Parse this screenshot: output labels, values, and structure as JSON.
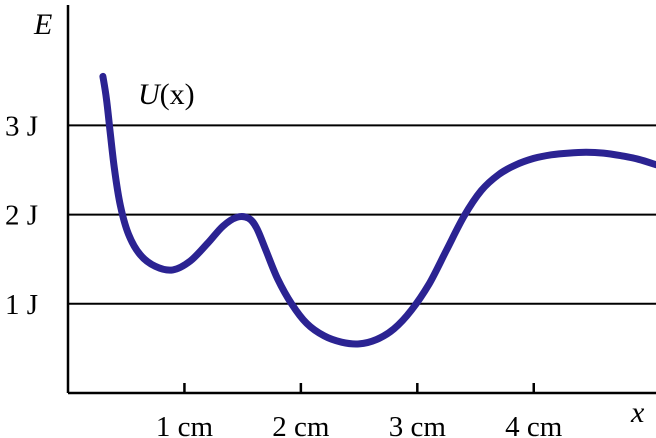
{
  "chart_data": {
    "type": "line",
    "xlabel": "x",
    "ylabel": "E",
    "curve_label_var": "U",
    "curve_label_arg": "(x)",
    "x_unit": "cm",
    "y_unit": "J",
    "xlim": [
      0,
      5.05
    ],
    "ylim": [
      0,
      4.35
    ],
    "y_ticks": [
      {
        "value": 1,
        "label": "1 J"
      },
      {
        "value": 2,
        "label": "2 J"
      },
      {
        "value": 3,
        "label": "3 J"
      }
    ],
    "x_ticks": [
      {
        "value": 1,
        "label": "1 cm"
      },
      {
        "value": 2,
        "label": "2 cm"
      },
      {
        "value": 3,
        "label": "3 cm"
      },
      {
        "value": 4,
        "label": "4 cm"
      }
    ],
    "gridlines_y": [
      1,
      2,
      3
    ],
    "series": [
      {
        "color": "#2b2392",
        "x": [
          0.3,
          0.33,
          0.36,
          0.4,
          0.45,
          0.52,
          0.62,
          0.75,
          0.9,
          1.05,
          1.2,
          1.33,
          1.45,
          1.55,
          1.62,
          1.7,
          1.8,
          1.92,
          2.05,
          2.2,
          2.35,
          2.5,
          2.65,
          2.8,
          2.95,
          3.1,
          3.25,
          3.4,
          3.55,
          3.7,
          3.85,
          4.0,
          4.15,
          4.3,
          4.45,
          4.6,
          4.75,
          4.9,
          5.05
        ],
        "y": [
          3.55,
          3.3,
          2.95,
          2.5,
          2.1,
          1.78,
          1.55,
          1.42,
          1.38,
          1.48,
          1.68,
          1.87,
          1.97,
          1.96,
          1.85,
          1.6,
          1.28,
          1.0,
          0.78,
          0.64,
          0.57,
          0.55,
          0.6,
          0.72,
          0.93,
          1.22,
          1.6,
          1.98,
          2.27,
          2.45,
          2.56,
          2.63,
          2.67,
          2.69,
          2.7,
          2.69,
          2.66,
          2.62,
          2.56
        ]
      }
    ]
  }
}
